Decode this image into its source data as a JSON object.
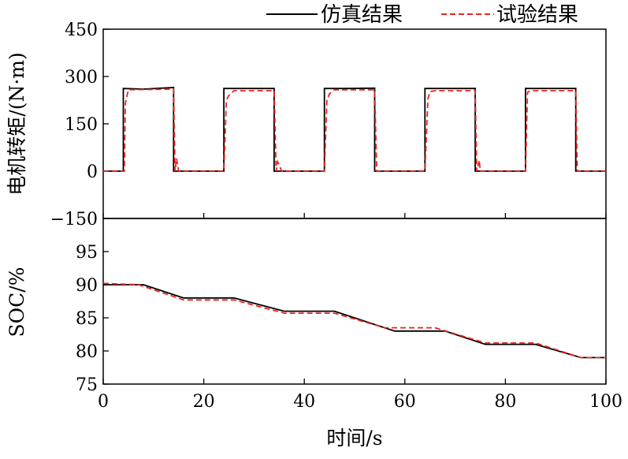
{
  "legend": [
    {
      "label": "仿真结果",
      "color": "#000000",
      "style": "solid"
    },
    {
      "label": "试验结果",
      "color": "#e8251f",
      "style": "dashed"
    }
  ],
  "chart_data": [
    {
      "type": "line",
      "ylabel": "电机转矩/(N·m)",
      "ylim": [
        -150,
        450
      ],
      "yticks": [
        -150,
        0,
        150,
        300,
        450
      ],
      "xlim": [
        0,
        100
      ],
      "series": [
        {
          "name": "仿真结果",
          "x": [
            0,
            4,
            4,
            8,
            14,
            14,
            24,
            24,
            28,
            34,
            34,
            44,
            44,
            48,
            54,
            54,
            64,
            64,
            68,
            74,
            74,
            84,
            84,
            88,
            94,
            94,
            100
          ],
          "y": [
            0,
            0,
            262,
            260,
            265,
            0,
            0,
            262,
            262,
            262,
            0,
            0,
            262,
            262,
            263,
            0,
            0,
            262,
            262,
            262,
            0,
            0,
            262,
            262,
            262,
            0,
            0
          ]
        },
        {
          "name": "试验结果",
          "x": [
            0,
            4.2,
            4.4,
            5,
            14,
            14.3,
            14.6,
            15,
            24,
            24.5,
            25,
            26,
            34,
            34.4,
            34.7,
            35.5,
            44,
            44.5,
            45,
            46,
            54,
            54.4,
            55,
            64,
            64.6,
            65,
            66,
            74,
            74.3,
            74.8,
            75,
            84,
            84.4,
            85,
            94,
            94.3,
            95,
            100
          ],
          "y": [
            0,
            0,
            215,
            258,
            260,
            0,
            40,
            0,
            0,
            225,
            240,
            255,
            255,
            0,
            30,
            0,
            0,
            225,
            245,
            258,
            258,
            0,
            0,
            0,
            230,
            252,
            255,
            255,
            0,
            35,
            0,
            0,
            250,
            255,
            255,
            0,
            0,
            0
          ]
        }
      ]
    },
    {
      "type": "line",
      "ylabel": "SOC/%",
      "xlabel": "时间/s",
      "ylim": [
        75,
        100
      ],
      "yticks": [
        75,
        80,
        85,
        90,
        95
      ],
      "xlim": [
        0,
        100
      ],
      "xticks": [
        0,
        20,
        40,
        60,
        80,
        100
      ],
      "series": [
        {
          "name": "仿真结果",
          "x": [
            0,
            8,
            16,
            26,
            36,
            46,
            58,
            68,
            76,
            86,
            95,
            100
          ],
          "y": [
            90,
            90,
            88,
            88,
            86,
            86,
            83,
            83,
            81,
            81,
            79,
            79
          ]
        },
        {
          "name": "试验结果",
          "x": [
            0,
            7,
            16,
            26,
            36,
            46,
            56,
            66,
            76,
            86,
            95,
            100
          ],
          "y": [
            90.2,
            90,
            87.7,
            87.7,
            85.7,
            85.7,
            83.5,
            83.5,
            81.2,
            81.2,
            79,
            79
          ]
        }
      ]
    }
  ]
}
